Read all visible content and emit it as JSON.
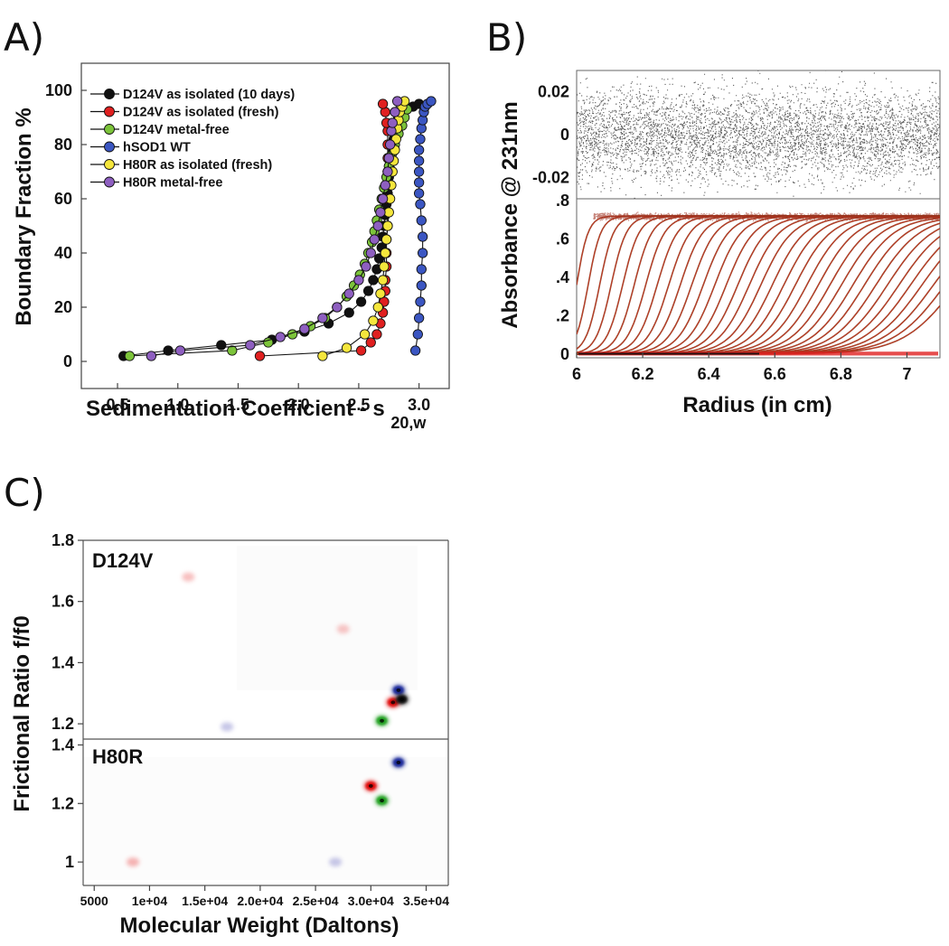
{
  "panels": {
    "a_label": "A)",
    "b_label": "B)",
    "c_label": "C)"
  },
  "chart_data": [
    {
      "id": "A",
      "type": "scatter",
      "title": "",
      "xlabel": "Sedimentation Coefficient - s",
      "xlabel_sub": "20,w",
      "ylabel": "Boundary Fraction %",
      "xlim": [
        0.2,
        3.25
      ],
      "ylim": [
        -10,
        110
      ],
      "xticks": [
        0.5,
        1.0,
        1.5,
        2.0,
        2.5,
        3.0
      ],
      "xtick_labels": [
        "0.5",
        "1.0",
        "1.5",
        "2.0",
        "2.5",
        "3.0"
      ],
      "yticks": [
        0,
        20,
        40,
        60,
        80,
        100
      ],
      "ytick_labels": [
        "0",
        "20",
        "40",
        "60",
        "80",
        "100"
      ],
      "legend_position": "top-left",
      "series": [
        {
          "name": "D124V as isolated (10 days)",
          "color": "#111111",
          "x": [
            0.55,
            0.92,
            1.36,
            1.78,
            2.05,
            2.25,
            2.42,
            2.52,
            2.58,
            2.62,
            2.65,
            2.67,
            2.69,
            2.7,
            2.71,
            2.72,
            2.73,
            2.74,
            2.74,
            2.75,
            2.76,
            2.77,
            2.78,
            2.78,
            2.79,
            2.8,
            2.81,
            2.82,
            2.83,
            2.84,
            2.85,
            2.9,
            2.95,
            3.0
          ],
          "y": [
            2,
            4,
            6,
            8,
            11,
            14,
            18,
            22,
            26,
            30,
            34,
            38,
            42,
            46,
            50,
            54,
            58,
            62,
            65,
            68,
            71,
            74,
            77,
            80,
            82,
            84,
            86,
            88,
            90,
            91,
            92,
            93,
            94,
            95
          ]
        },
        {
          "name": "D124V as isolated (fresh)",
          "color": "#e02020",
          "x": [
            1.68,
            2.52,
            2.6,
            2.65,
            2.68,
            2.7,
            2.71,
            2.72,
            2.72,
            2.73,
            2.73,
            2.73,
            2.74,
            2.74,
            2.74,
            2.74,
            2.74,
            2.74,
            2.74,
            2.74,
            2.73,
            2.72,
            2.7
          ],
          "y": [
            2,
            4,
            7,
            10,
            14,
            18,
            22,
            26,
            30,
            35,
            40,
            45,
            50,
            55,
            60,
            65,
            70,
            75,
            80,
            85,
            88,
            92,
            95
          ]
        },
        {
          "name": "D124V metal-free",
          "color": "#7cc43a",
          "x": [
            0.6,
            1.45,
            1.75,
            1.95,
            2.1,
            2.22,
            2.32,
            2.4,
            2.46,
            2.51,
            2.55,
            2.58,
            2.61,
            2.63,
            2.65,
            2.67,
            2.69,
            2.71,
            2.73,
            2.75,
            2.77,
            2.8,
            2.83,
            2.86,
            2.88,
            2.9
          ],
          "y": [
            2,
            4,
            7,
            10,
            13,
            16,
            20,
            24,
            28,
            32,
            36,
            40,
            44,
            48,
            52,
            56,
            60,
            64,
            68,
            72,
            76,
            80,
            84,
            87,
            90,
            93
          ]
        },
        {
          "name": "hSOD1 WT",
          "color": "#3b56c2",
          "x": [
            2.97,
            2.99,
            3.0,
            3.01,
            3.02,
            3.02,
            3.03,
            3.03,
            3.02,
            3.01,
            3.0,
            3.0,
            3.0,
            3.0,
            3.0,
            3.01,
            3.02,
            3.03,
            3.04,
            3.05,
            3.07,
            3.1
          ],
          "y": [
            4,
            10,
            16,
            22,
            28,
            34,
            40,
            46,
            52,
            58,
            62,
            66,
            70,
            74,
            78,
            82,
            86,
            89,
            92,
            94,
            95,
            96
          ]
        },
        {
          "name": "H80R as isolated (fresh)",
          "color": "#f5e63c",
          "x": [
            2.2,
            2.4,
            2.55,
            2.62,
            2.66,
            2.68,
            2.7,
            2.71,
            2.72,
            2.73,
            2.74,
            2.75,
            2.76,
            2.77,
            2.78,
            2.79,
            2.8,
            2.81,
            2.82,
            2.83,
            2.84,
            2.86,
            2.88
          ],
          "y": [
            2,
            5,
            10,
            15,
            20,
            25,
            30,
            35,
            40,
            45,
            50,
            55,
            60,
            65,
            70,
            74,
            78,
            82,
            86,
            89,
            92,
            94,
            96
          ]
        },
        {
          "name": "H80R metal-free",
          "color": "#8e5fc0",
          "x": [
            0.78,
            1.02,
            1.6,
            1.85,
            2.05,
            2.2,
            2.32,
            2.42,
            2.5,
            2.56,
            2.6,
            2.63,
            2.66,
            2.68,
            2.7,
            2.72,
            2.74,
            2.75,
            2.76,
            2.77,
            2.78,
            2.8,
            2.82
          ],
          "y": [
            2,
            4,
            6,
            9,
            12,
            16,
            20,
            25,
            30,
            35,
            40,
            45,
            50,
            55,
            60,
            65,
            70,
            75,
            80,
            85,
            88,
            92,
            96
          ]
        }
      ]
    },
    {
      "id": "B",
      "type": "line",
      "xlabel": "Radius (in cm)",
      "ylabel": "Absorbance @ 231nm",
      "xlim": [
        6.0,
        7.1
      ],
      "xticks": [
        6.0,
        6.2,
        6.4,
        6.6,
        6.8,
        7.0
      ],
      "xtick_labels": [
        "6",
        "6.2",
        "6.4",
        "6.6",
        "6.8",
        "7"
      ],
      "residuals": {
        "ylim": [
          -0.03,
          0.03
        ],
        "yticks": [
          0.02,
          0,
          -0.02
        ],
        "ytick_labels": [
          "0.02",
          "0",
          "-0.02"
        ],
        "color": "#222222",
        "spread": 0.028
      },
      "scans": {
        "ylim": [
          -0.02,
          0.81
        ],
        "yticks": [
          0.8,
          0.6,
          0.4,
          0.2,
          0
        ],
        "ytick_labels": [
          ".8",
          ".6",
          ".4",
          ".2",
          "0"
        ],
        "plateau": 0.72,
        "scan_count": 34,
        "data_color": "#8a3a1a",
        "fit_color": "#d03020",
        "boundary_start": 6.0,
        "boundary_end": 7.15
      }
    },
    {
      "id": "C",
      "type": "heatmap",
      "xlabel": "Molecular Weight (Daltons)",
      "ylabel": "Frictional Ratio f/f0",
      "xlim": [
        4000,
        37000
      ],
      "xticks": [
        5000,
        10000,
        15000,
        20000,
        25000,
        30000,
        35000
      ],
      "xtick_labels": [
        "5000",
        "1e+04",
        "1.5e+04",
        "2.0e+04",
        "2.5e+04",
        "3.0e+04",
        "3.5e+04"
      ],
      "subplots": [
        {
          "name": "D124V",
          "ylim": [
            1.15,
            1.8
          ],
          "yticks": [
            1.2,
            1.4,
            1.6,
            1.8
          ],
          "ytick_labels": [
            "1.2",
            "1.4",
            "1.6",
            "1.8"
          ],
          "peaks": [
            {
              "mw": 13500,
              "ff0": 1.68,
              "color": "#f08080",
              "intensity": 0.5
            },
            {
              "mw": 27500,
              "ff0": 1.51,
              "color": "#f08080",
              "intensity": 0.45
            },
            {
              "mw": 32500,
              "ff0": 1.31,
              "color": "#1a2a9a",
              "intensity": 1.0
            },
            {
              "mw": 32000,
              "ff0": 1.27,
              "color": "#e01010",
              "intensity": 1.0
            },
            {
              "mw": 32800,
              "ff0": 1.28,
              "color": "#111111",
              "intensity": 1.0
            },
            {
              "mw": 31000,
              "ff0": 1.21,
              "color": "#20a020",
              "intensity": 1.0
            },
            {
              "mw": 17000,
              "ff0": 1.19,
              "color": "#9090d0",
              "intensity": 0.5
            }
          ]
        },
        {
          "name": "H80R",
          "ylim": [
            0.92,
            1.42
          ],
          "yticks": [
            1.0,
            1.2,
            1.4
          ],
          "ytick_labels": [
            "1",
            "1.2",
            "1.4"
          ],
          "peaks": [
            {
              "mw": 32500,
              "ff0": 1.34,
              "color": "#1a2a9a",
              "intensity": 1.0
            },
            {
              "mw": 30000,
              "ff0": 1.26,
              "color": "#e01010",
              "intensity": 1.0
            },
            {
              "mw": 31000,
              "ff0": 1.21,
              "color": "#20a020",
              "intensity": 1.0
            },
            {
              "mw": 8500,
              "ff0": 1.0,
              "color": "#f08080",
              "intensity": 0.6
            },
            {
              "mw": 26800,
              "ff0": 1.0,
              "color": "#9090d0",
              "intensity": 0.5
            }
          ]
        }
      ]
    }
  ]
}
